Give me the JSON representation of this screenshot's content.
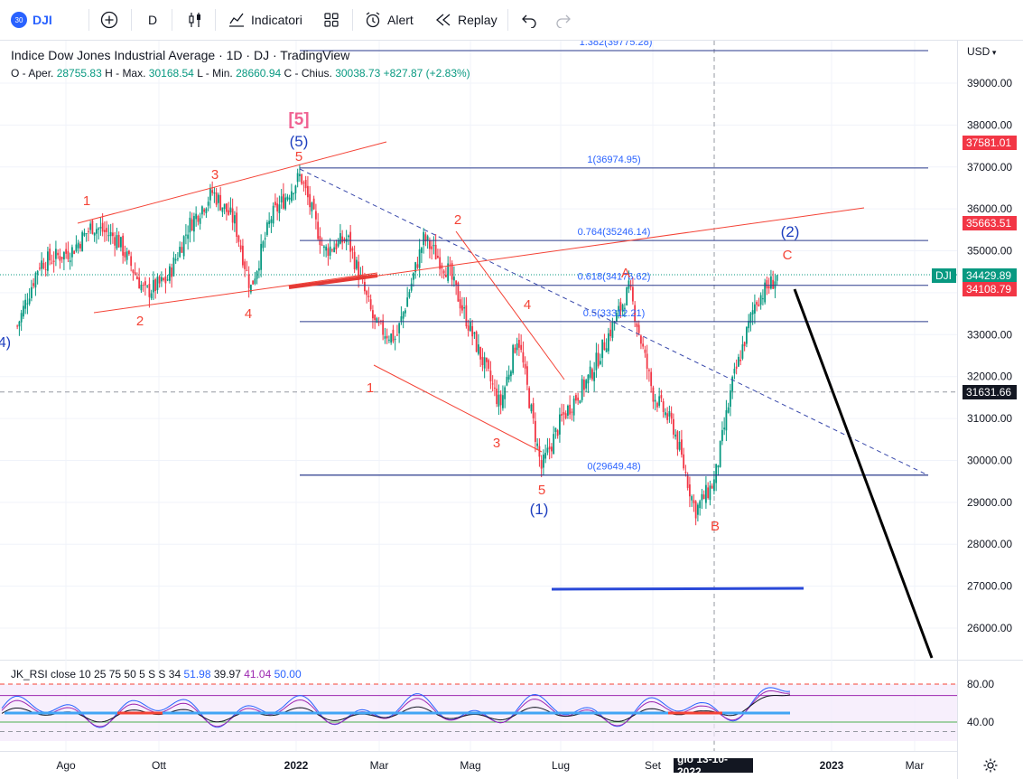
{
  "toolbar": {
    "symbol_badge": "30",
    "symbol": "DJI",
    "interval": "D",
    "indicators_label": "Indicatori",
    "alert_label": "Alert",
    "replay_label": "Replay"
  },
  "legend": {
    "title": "Indice Dow Jones Industrial Average · 1D · DJ   · TradingView",
    "ohlc": {
      "o_label": "O - Aper.",
      "o": "28755.83",
      "h_label": "H - Max.",
      "h": "30168.54",
      "l_label": "L - Min.",
      "l": "28660.94",
      "c_label": "C - Chius.",
      "c": "30038.73",
      "chg": "+827.87 (+2.83%)"
    }
  },
  "currency": "USD",
  "rsi_legend": {
    "name": "JK_RSI close 10 25 75 50 5 S S 34",
    "v1": "51.98",
    "v2": "39.97",
    "v3": "41.04",
    "v4": "50.00",
    "axis_labels": [
      "80.00",
      "40.00"
    ]
  },
  "price_tags": {
    "t1": "37581.01",
    "t2": "35663.51",
    "dji_label": "DJI",
    "t3": "34429.89",
    "t4": "34108.79",
    "t5": "31631.66"
  },
  "crosshair_date": "gio 13-10-2022",
  "colors": {
    "up": "#089981",
    "down": "#f23645",
    "accent": "#2962ff",
    "wave_red": "#e53935",
    "wave_blue": "#1e3fbf",
    "fib": "#2a3a8c"
  },
  "chart_data": {
    "type": "candlestick",
    "ylim": [
      25000,
      39900
    ],
    "y_ticks": [
      26000,
      27000,
      28000,
      29000,
      30000,
      31000,
      32000,
      33000,
      34000,
      35000,
      36000,
      37000,
      38000,
      39000
    ],
    "y_tick_labels": [
      "26000.00",
      "27000.00",
      "28000.00",
      "29000.00",
      "30000.00",
      "31000.00",
      "32000.00",
      "33000.00",
      "34000.00",
      "35000.00",
      "36000.00",
      "37000.00",
      "38000.00",
      "39000.00"
    ],
    "x_tick_labels": [
      "Ago",
      "Ott",
      "2022",
      "Mar",
      "Mag",
      "Lug",
      "Set",
      "2023",
      "Mar"
    ],
    "fib_labels": [
      "1.382(39775.28)",
      "1(36974.95)",
      "0.764(35246.14)",
      "0.618(34176.62)",
      "0.5(33312.21)",
      "0(29649.48)"
    ],
    "fib_levels": [
      39775.28,
      36974.95,
      35246.14,
      34176.62,
      33312.21,
      29649.48
    ],
    "wave_labels": {
      "big5": "[5]",
      "p5": "(5)",
      "p1": "(1)",
      "p2": "(2)",
      "n1": "1",
      "n2": "2",
      "n3": "3",
      "n4": "4",
      "n5": "5",
      "a": "A",
      "b": "B",
      "c": "C",
      "p4_edge": "4)"
    },
    "series_points": [
      {
        "date": "2021-06-25",
        "close": 33200
      },
      {
        "date": "2021-07-10",
        "close": 34700
      },
      {
        "date": "2021-08-01",
        "close": 35000
      },
      {
        "date": "2021-08-15",
        "close": 35600
      },
      {
        "date": "2021-09-01",
        "close": 35300
      },
      {
        "date": "2021-09-20",
        "close": 34000
      },
      {
        "date": "2021-10-05",
        "close": 34300
      },
      {
        "date": "2021-10-20",
        "close": 35600
      },
      {
        "date": "2021-11-05",
        "close": 36400
      },
      {
        "date": "2021-11-20",
        "close": 35700
      },
      {
        "date": "2021-12-01",
        "close": 34100
      },
      {
        "date": "2021-12-15",
        "close": 35800
      },
      {
        "date": "2022-01-04",
        "close": 36800
      },
      {
        "date": "2022-01-20",
        "close": 35000
      },
      {
        "date": "2022-02-05",
        "close": 35300
      },
      {
        "date": "2022-02-24",
        "close": 33200
      },
      {
        "date": "2022-03-10",
        "close": 32900
      },
      {
        "date": "2022-03-29",
        "close": 35300
      },
      {
        "date": "2022-04-15",
        "close": 34500
      },
      {
        "date": "2022-05-01",
        "close": 33000
      },
      {
        "date": "2022-05-20",
        "close": 31300
      },
      {
        "date": "2022-06-01",
        "close": 33000
      },
      {
        "date": "2022-06-17",
        "close": 29800
      },
      {
        "date": "2022-07-01",
        "close": 31000
      },
      {
        "date": "2022-07-20",
        "close": 32000
      },
      {
        "date": "2022-08-16",
        "close": 34100
      },
      {
        "date": "2022-09-01",
        "close": 31600
      },
      {
        "date": "2022-09-15",
        "close": 30800
      },
      {
        "date": "2022-09-30",
        "close": 28800
      },
      {
        "date": "2022-10-13",
        "close": 29500
      },
      {
        "date": "2022-10-25",
        "close": 31800
      },
      {
        "date": "2022-11-10",
        "close": 33800
      },
      {
        "date": "2022-11-25",
        "close": 34400
      }
    ]
  }
}
